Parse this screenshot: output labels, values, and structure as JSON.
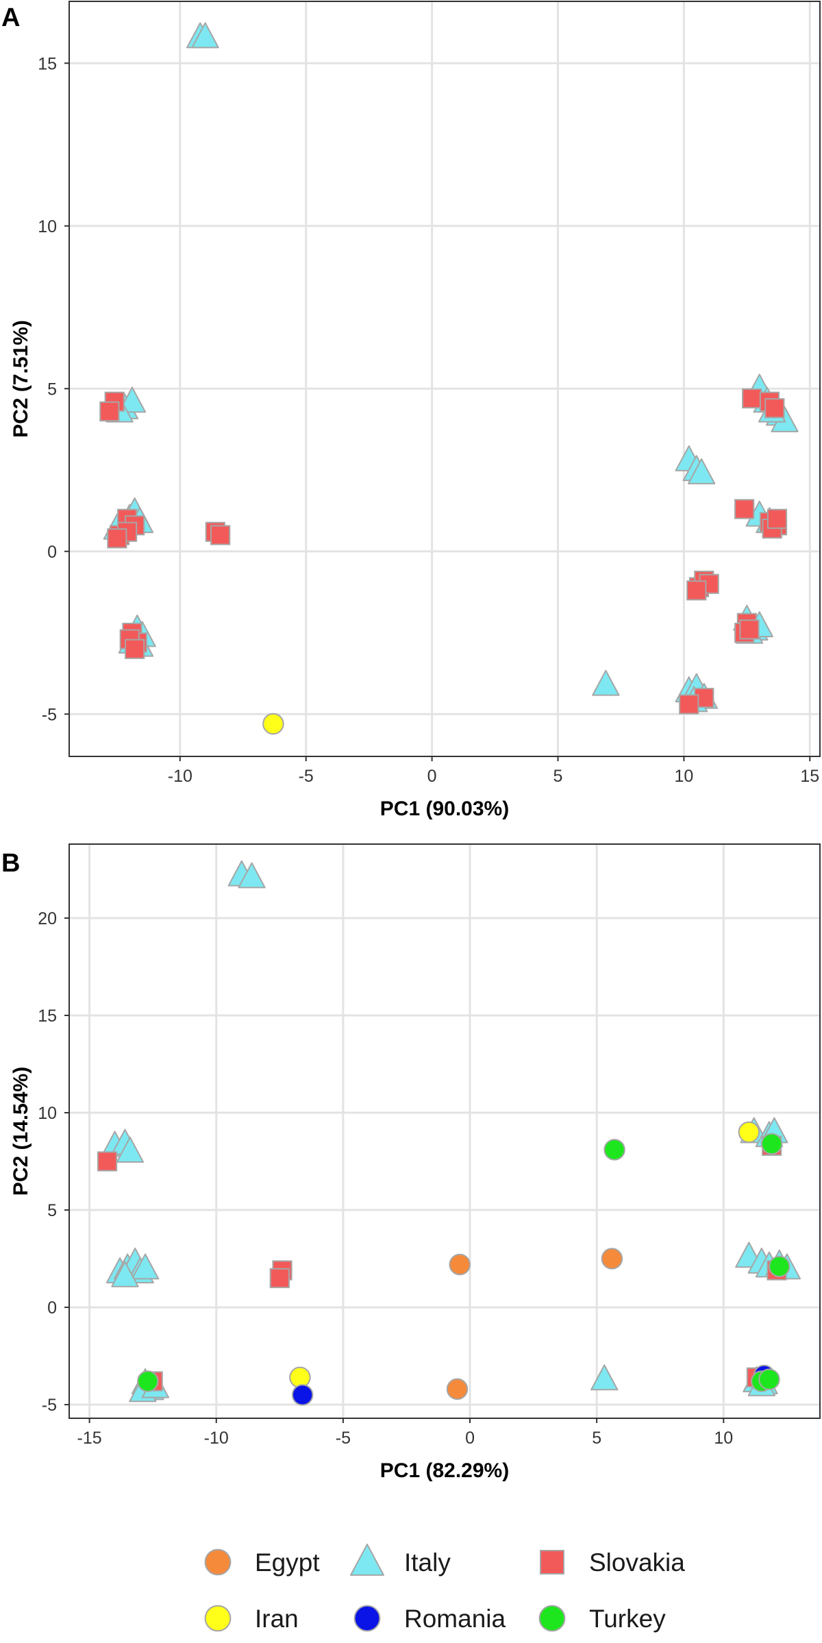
{
  "colors": {
    "Egypt": "#f58a3b",
    "Italy": "#7de8f1",
    "Slovakia": "#f25a5a",
    "Iran": "#ffff1a",
    "Romania": "#0a14e6",
    "Turkey": "#1ee61e",
    "marker_stroke": "#a6a6a6",
    "grid": "#e3e3e3"
  },
  "legend": {
    "items": [
      {
        "label": "Egypt",
        "shape": "circle",
        "color_key": "Egypt"
      },
      {
        "label": "Italy",
        "shape": "triangle",
        "color_key": "Italy"
      },
      {
        "label": "Slovakia",
        "shape": "square",
        "color_key": "Slovakia"
      },
      {
        "label": "Iran",
        "shape": "circle",
        "color_key": "Iran"
      },
      {
        "label": "Romania",
        "shape": "circle",
        "color_key": "Romania"
      },
      {
        "label": "Turkey",
        "shape": "circle",
        "color_key": "Turkey"
      }
    ]
  },
  "chart_data": [
    {
      "panel": "A",
      "type": "scatter",
      "xlabel": "PC1 (90.03%)",
      "ylabel": "PC2 (7.51%)",
      "xlim": [
        -14.4,
        15.4
      ],
      "ylim": [
        -6.3,
        16.9
      ],
      "xticks": [
        -10,
        -5,
        0,
        5,
        10,
        15
      ],
      "yticks": [
        -5,
        0,
        5,
        10,
        15
      ],
      "grid": true,
      "series": [
        {
          "name": "Italy",
          "shape": "triangle",
          "points": [
            [
              -9.2,
              15.8
            ],
            [
              -9.0,
              15.8
            ],
            [
              -12.2,
              4.4
            ],
            [
              -11.9,
              4.6
            ],
            [
              -12.4,
              4.3
            ],
            [
              -12.0,
              1.0
            ],
            [
              -11.8,
              1.2
            ],
            [
              -12.3,
              0.8
            ],
            [
              -11.6,
              0.9
            ],
            [
              -12.5,
              0.7
            ],
            [
              -11.7,
              -2.4
            ],
            [
              -11.5,
              -2.6
            ],
            [
              -11.9,
              -2.8
            ],
            [
              -11.6,
              -2.9
            ],
            [
              13.0,
              5.0
            ],
            [
              13.3,
              4.6
            ],
            [
              13.8,
              4.2
            ],
            [
              14.0,
              4.0
            ],
            [
              13.5,
              4.3
            ],
            [
              10.2,
              2.8
            ],
            [
              10.5,
              2.5
            ],
            [
              10.7,
              2.4
            ],
            [
              13.0,
              1.1
            ],
            [
              13.4,
              0.9
            ],
            [
              12.5,
              -2.1
            ],
            [
              12.8,
              -2.4
            ],
            [
              13.0,
              -2.3
            ],
            [
              12.6,
              -2.5
            ],
            [
              6.9,
              -4.1
            ],
            [
              10.2,
              -4.3
            ],
            [
              10.5,
              -4.2
            ],
            [
              10.8,
              -4.5
            ],
            [
              10.4,
              -4.6
            ]
          ]
        },
        {
          "name": "Slovakia",
          "shape": "square",
          "points": [
            [
              -12.6,
              4.6
            ],
            [
              -12.8,
              4.3
            ],
            [
              -12.1,
              1.0
            ],
            [
              -11.8,
              0.8
            ],
            [
              -12.4,
              0.5
            ],
            [
              -12.1,
              0.6
            ],
            [
              -12.5,
              0.4
            ],
            [
              -8.6,
              0.6
            ],
            [
              -8.4,
              0.5
            ],
            [
              -11.9,
              -2.5
            ],
            [
              -11.7,
              -2.8
            ],
            [
              -12.0,
              -2.7
            ],
            [
              -11.8,
              -3.0
            ],
            [
              12.7,
              4.7
            ],
            [
              13.4,
              4.6
            ],
            [
              13.6,
              4.4
            ],
            [
              12.4,
              1.3
            ],
            [
              13.4,
              0.9
            ],
            [
              13.7,
              0.8
            ],
            [
              13.5,
              0.7
            ],
            [
              13.7,
              1.0
            ],
            [
              10.6,
              -1.1
            ],
            [
              10.8,
              -0.9
            ],
            [
              11.0,
              -1.0
            ],
            [
              10.5,
              -1.2
            ],
            [
              12.5,
              -2.2
            ],
            [
              12.4,
              -2.5
            ],
            [
              12.6,
              -2.4
            ],
            [
              10.8,
              -4.5
            ],
            [
              10.2,
              -4.7
            ]
          ]
        },
        {
          "name": "Iran",
          "shape": "circle",
          "points": [
            [
              -6.3,
              -5.3
            ]
          ]
        }
      ]
    },
    {
      "panel": "B",
      "type": "scatter",
      "xlabel": "PC1 (82.29%)",
      "ylabel": "PC2 (14.54%)",
      "xlim": [
        -15.8,
        13.8
      ],
      "ylim": [
        -5.7,
        23.8
      ],
      "xticks": [
        -15,
        -10,
        -5,
        0,
        5,
        10
      ],
      "yticks": [
        -5,
        0,
        5,
        10,
        15,
        20
      ],
      "grid": true,
      "series": [
        {
          "name": "Italy",
          "shape": "triangle",
          "points": [
            [
              -9.0,
              22.2
            ],
            [
              -8.6,
              22.1
            ],
            [
              -14.0,
              8.3
            ],
            [
              -13.6,
              8.4
            ],
            [
              -13.4,
              8.0
            ],
            [
              -13.8,
              1.8
            ],
            [
              -13.5,
              2.0
            ],
            [
              -13.2,
              2.3
            ],
            [
              -13.0,
              1.8
            ],
            [
              -12.8,
              2.0
            ],
            [
              -13.6,
              1.6
            ],
            [
              -12.8,
              -3.9
            ],
            [
              -12.6,
              -4.2
            ],
            [
              -12.9,
              -4.3
            ],
            [
              -12.4,
              -4.1
            ],
            [
              11.2,
              9.0
            ],
            [
              11.8,
              8.8
            ],
            [
              12.0,
              9.0
            ],
            [
              11.0,
              2.6
            ],
            [
              11.5,
              2.3
            ],
            [
              11.8,
              2.1
            ],
            [
              12.2,
              2.2
            ],
            [
              12.5,
              2.0
            ],
            [
              5.3,
              -3.7
            ],
            [
              11.3,
              -3.8
            ],
            [
              11.6,
              -3.9
            ],
            [
              11.5,
              -4.0
            ]
          ]
        },
        {
          "name": "Slovakia",
          "shape": "square",
          "points": [
            [
              -14.3,
              7.5
            ],
            [
              -7.4,
              1.9
            ],
            [
              -7.5,
              1.5
            ],
            [
              -12.5,
              -3.8
            ],
            [
              11.3,
              -3.6
            ],
            [
              11.9,
              8.3
            ],
            [
              12.1,
              1.9
            ]
          ]
        },
        {
          "name": "Egypt",
          "shape": "circle",
          "points": [
            [
              -0.4,
              2.2
            ],
            [
              5.6,
              2.5
            ],
            [
              -0.5,
              -4.2
            ]
          ]
        },
        {
          "name": "Iran",
          "shape": "circle",
          "points": [
            [
              -6.7,
              -3.6
            ],
            [
              11.0,
              9.0
            ]
          ]
        },
        {
          "name": "Romania",
          "shape": "circle",
          "points": [
            [
              -6.6,
              -4.5
            ],
            [
              11.6,
              -3.5
            ]
          ]
        },
        {
          "name": "Turkey",
          "shape": "circle",
          "points": [
            [
              5.7,
              8.1
            ],
            [
              11.9,
              8.4
            ],
            [
              12.2,
              2.1
            ],
            [
              -12.7,
              -3.8
            ],
            [
              11.5,
              -3.8
            ],
            [
              11.8,
              -3.7
            ]
          ]
        }
      ]
    }
  ]
}
